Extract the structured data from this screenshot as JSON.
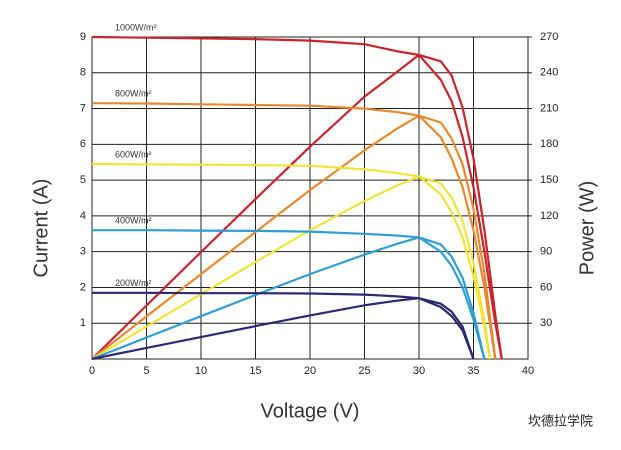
{
  "chart_data": {
    "type": "line",
    "x_label": "Voltage (V)",
    "y_label": "Current (A)",
    "y2_label": "Power (W)",
    "watermark": "坎德拉学院",
    "x": [
      0,
      5,
      10,
      15,
      20,
      25,
      28,
      30,
      32,
      33,
      34,
      35,
      36,
      36.5,
      37,
      37.6
    ],
    "xlim": [
      0,
      40
    ],
    "xticks": [
      0,
      5,
      10,
      15,
      20,
      25,
      30,
      35,
      40
    ],
    "ylim": [
      0,
      9
    ],
    "yticks": [
      1,
      2,
      3,
      4,
      5,
      6,
      7,
      8,
      9
    ],
    "y2lim": [
      0,
      270
    ],
    "y2ticks": [
      30,
      60,
      90,
      120,
      150,
      180,
      210,
      240,
      270
    ],
    "grid": true,
    "series": [
      {
        "name": "1000W/m²",
        "color": "#c8242c",
        "values": [
          9,
          8.98,
          8.96,
          8.94,
          8.9,
          8.8,
          8.6,
          8.5,
          7.8,
          7.2,
          6.2,
          4.8,
          3.0,
          2.0,
          1.0,
          0
        ],
        "power": [
          0,
          44.9,
          89.6,
          134.1,
          178,
          220,
          240.8,
          255,
          249.6,
          237.6,
          210.8,
          168,
          108,
          73,
          37,
          0
        ]
      },
      {
        "name": "800W/m²",
        "color": "#e8892e",
        "values": [
          7.15,
          7.14,
          7.12,
          7.1,
          7.08,
          7.0,
          6.9,
          6.8,
          6.2,
          5.6,
          4.8,
          3.6,
          2.0,
          1.0,
          0,
          null
        ],
        "power": [
          0,
          35.7,
          71.2,
          106.5,
          141.6,
          175,
          193.2,
          204,
          198.4,
          184.8,
          163.2,
          126,
          72,
          36.5,
          0,
          null
        ]
      },
      {
        "name": "600W/m²",
        "color": "#f0e43a",
        "values": [
          5.45,
          5.44,
          5.43,
          5.42,
          5.4,
          5.3,
          5.2,
          5.1,
          4.6,
          4.1,
          3.4,
          2.3,
          0.9,
          0,
          null,
          null
        ],
        "power": [
          0,
          27.2,
          54.3,
          81.3,
          108,
          132.5,
          145.6,
          153,
          147.2,
          135.3,
          115.6,
          80.5,
          32.4,
          0,
          null,
          null
        ]
      },
      {
        "name": "400W/m²",
        "color": "#2e9fd0",
        "values": [
          3.6,
          3.6,
          3.59,
          3.58,
          3.56,
          3.5,
          3.45,
          3.4,
          3.0,
          2.6,
          2.0,
          1.1,
          0,
          null,
          null,
          null
        ],
        "power": [
          0,
          18,
          35.9,
          53.7,
          71.2,
          87.5,
          96.6,
          102,
          96,
          85.8,
          68,
          38.5,
          0,
          null,
          null,
          null
        ]
      },
      {
        "name": "200W/m²",
        "color": "#2c2a6e",
        "values": [
          1.85,
          1.85,
          1.84,
          1.84,
          1.83,
          1.8,
          1.75,
          1.7,
          1.45,
          1.2,
          0.8,
          0,
          null,
          null,
          null,
          null
        ],
        "power": [
          0,
          9.3,
          18.4,
          27.6,
          36.6,
          45,
          49,
          51,
          46.4,
          39.6,
          27.2,
          0,
          null,
          null,
          null,
          null
        ]
      }
    ]
  }
}
